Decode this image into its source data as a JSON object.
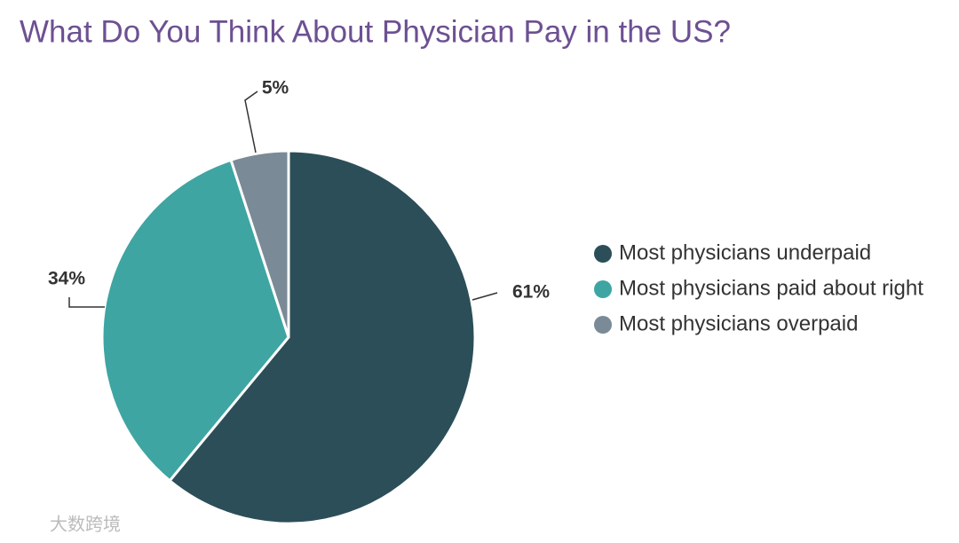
{
  "chart_data": {
    "type": "pie",
    "title": "What Do You Think About Physician Pay in the US?",
    "categories": [
      "Most physicians underpaid",
      "Most physicians paid about right",
      "Most physicians overpaid"
    ],
    "values": [
      61,
      34,
      5
    ],
    "value_labels": [
      "61%",
      "34%",
      "5%"
    ],
    "colors": [
      "#2c4e58",
      "#3ea5a2",
      "#7a8a96"
    ],
    "legend": "right"
  },
  "watermark": "大数跨境"
}
